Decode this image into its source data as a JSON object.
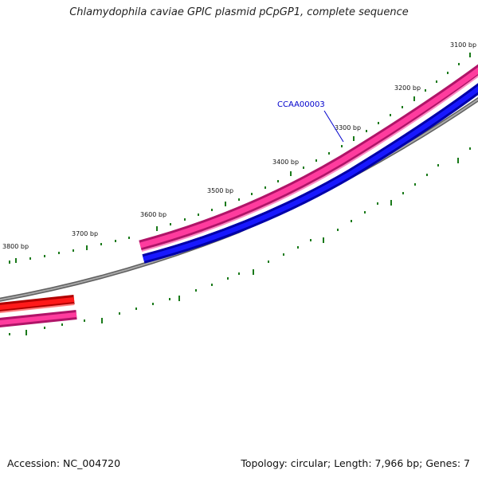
{
  "title": "Chlamydophila caviae GPIC plasmid pCpGP1, complete sequence",
  "footer": {
    "accession": "Accession: NC_004720",
    "summary": "Topology: circular; Length: 7,966 bp; Genes: 7"
  },
  "map": {
    "visible_ticks": [
      "3100 bp",
      "3200 bp",
      "3300 bp",
      "3400 bp",
      "3500 bp",
      "3600 bp",
      "3700 bp",
      "3800 bp"
    ],
    "gene_label": "CCAA00003",
    "colors": {
      "backbone": "#808080",
      "pink_feature": "#e8207a",
      "blue_feature": "#0000e0",
      "red_feature": "#e60000",
      "ticks": "#1a7a1a",
      "gene_label": "#0000cc"
    }
  }
}
